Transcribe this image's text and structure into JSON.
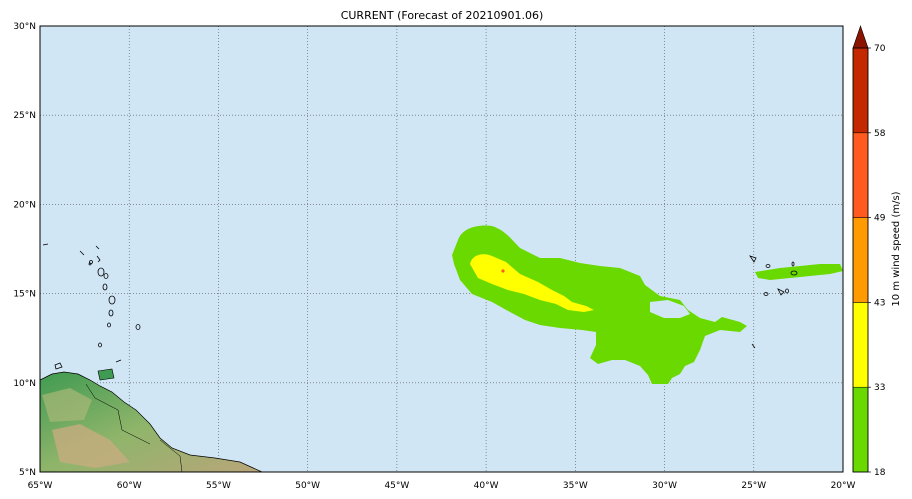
{
  "title": "CURRENT (Forecast of 20210901.06)",
  "map": {
    "lon_range": [
      -65,
      -20
    ],
    "lat_range": [
      5,
      30
    ],
    "ocean_color": "#d0e6f5",
    "graticule": "dotted",
    "x_ticks": [
      {
        "lon": -65,
        "label": "65°W"
      },
      {
        "lon": -60,
        "label": "60°W"
      },
      {
        "lon": -55,
        "label": "55°W"
      },
      {
        "lon": -50,
        "label": "50°W"
      },
      {
        "lon": -45,
        "label": "45°W"
      },
      {
        "lon": -40,
        "label": "40°W"
      },
      {
        "lon": -35,
        "label": "35°W"
      },
      {
        "lon": -30,
        "label": "30°W"
      },
      {
        "lon": -25,
        "label": "25°W"
      },
      {
        "lon": -20,
        "label": "20°W"
      }
    ],
    "y_ticks": [
      {
        "lat": 30,
        "label": "30°N"
      },
      {
        "lat": 25,
        "label": "25°N"
      },
      {
        "lat": 20,
        "label": "20°N"
      },
      {
        "lat": 15,
        "label": "15°N"
      },
      {
        "lat": 10,
        "label": "10°N"
      },
      {
        "lat": 5,
        "label": "5°N"
      }
    ]
  },
  "colorbar": {
    "label": "10 m wind speed (m/s)",
    "ticks": [
      "18",
      "33",
      "43",
      "49",
      "58",
      "70"
    ],
    "bins": [
      {
        "from": 18,
        "to": 33,
        "color": "#6ad900"
      },
      {
        "from": 33,
        "to": 43,
        "color": "#ffff00"
      },
      {
        "from": 43,
        "to": 49,
        "color": "#ff9a00"
      },
      {
        "from": 49,
        "to": 58,
        "color": "#ff5a20"
      },
      {
        "from": 58,
        "to": 70,
        "color": "#c42800"
      }
    ],
    "extend_color": "#8a1400"
  }
}
